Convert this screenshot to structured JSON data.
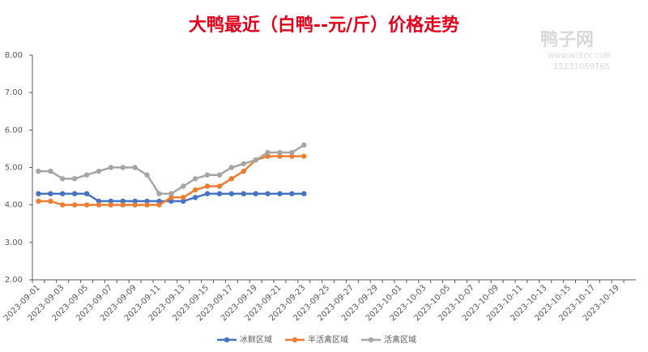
{
  "chart_data": {
    "type": "line",
    "title": "大鸭最近（白鸭--元/斤）价格走势",
    "watermark": {
      "name": "鸭子网",
      "url": "WWW.INTEDC.COM",
      "phone": "15131069765"
    },
    "categories": [
      "2023-09-01",
      null,
      "2023-09-03",
      null,
      "2023-09-05",
      null,
      "2023-09-07",
      null,
      "2023-09-09",
      null,
      "2023-09-11",
      null,
      "2023-09-13",
      null,
      "2023-09-15",
      null,
      "2023-09-17",
      null,
      "2023-09-19",
      null,
      "2023-09-21",
      null,
      "2023-09-23",
      null,
      "2023-09-25",
      null,
      "2023-09-27",
      null,
      "2023-09-29",
      null,
      "2023-10-01",
      null,
      "2023-10-03",
      null,
      "2023-10-05",
      null,
      "2023-10-07",
      null,
      "2023-10-09",
      null,
      "2023-10-11",
      null,
      "2023-10-13",
      null,
      "2023-10-15",
      null,
      "2023-10-17",
      null,
      "2023-10-19",
      null
    ],
    "series": [
      {
        "name": "冰鲜区域",
        "color": "#4472c4",
        "values": [
          4.3,
          4.3,
          4.3,
          4.3,
          4.3,
          4.1,
          4.1,
          4.1,
          4.1,
          4.1,
          4.1,
          4.1,
          4.1,
          4.2,
          4.3,
          4.3,
          4.3,
          4.3,
          4.3,
          4.3,
          4.3,
          4.3,
          4.3,
          null,
          null,
          null,
          null,
          null,
          null,
          null,
          null,
          null,
          null,
          null,
          null,
          null,
          null,
          null,
          null,
          null,
          null,
          null,
          null,
          null,
          null,
          null,
          null,
          null,
          null,
          null
        ]
      },
      {
        "name": "半活禽区域",
        "color": "#ed7d31",
        "values": [
          4.1,
          4.1,
          4.0,
          4.0,
          4.0,
          4.0,
          4.0,
          4.0,
          4.0,
          4.0,
          4.0,
          4.2,
          4.2,
          4.4,
          4.5,
          4.5,
          4.7,
          4.9,
          5.2,
          5.3,
          5.3,
          5.3,
          5.3,
          null,
          null,
          null,
          null,
          null,
          null,
          null,
          null,
          null,
          null,
          null,
          null,
          null,
          null,
          null,
          null,
          null,
          null,
          null,
          null,
          null,
          null,
          null,
          null,
          null,
          null,
          null
        ]
      },
      {
        "name": "活禽区域",
        "color": "#a5a5a5",
        "values": [
          4.9,
          4.9,
          4.7,
          4.7,
          4.8,
          4.9,
          5.0,
          5.0,
          5.0,
          4.8,
          4.3,
          4.3,
          4.5,
          4.7,
          4.8,
          4.8,
          5.0,
          5.1,
          5.2,
          5.4,
          5.4,
          5.4,
          5.6,
          null,
          null,
          null,
          null,
          null,
          null,
          null,
          null,
          null,
          null,
          null,
          null,
          null,
          null,
          null,
          null,
          null,
          null,
          null,
          null,
          null,
          null,
          null,
          null,
          null,
          null,
          null
        ]
      }
    ],
    "ylim": [
      2,
      8
    ],
    "yticks": [
      {
        "value": 2,
        "label": "2.00"
      },
      {
        "value": 3,
        "label": "3.00"
      },
      {
        "value": 4,
        "label": "4.00"
      },
      {
        "value": 5,
        "label": "5.00"
      },
      {
        "value": 6,
        "label": "6.00"
      },
      {
        "value": 7,
        "label": "7.00"
      },
      {
        "value": 8,
        "label": "8.00"
      }
    ],
    "grid": false,
    "legend": "bottom"
  }
}
